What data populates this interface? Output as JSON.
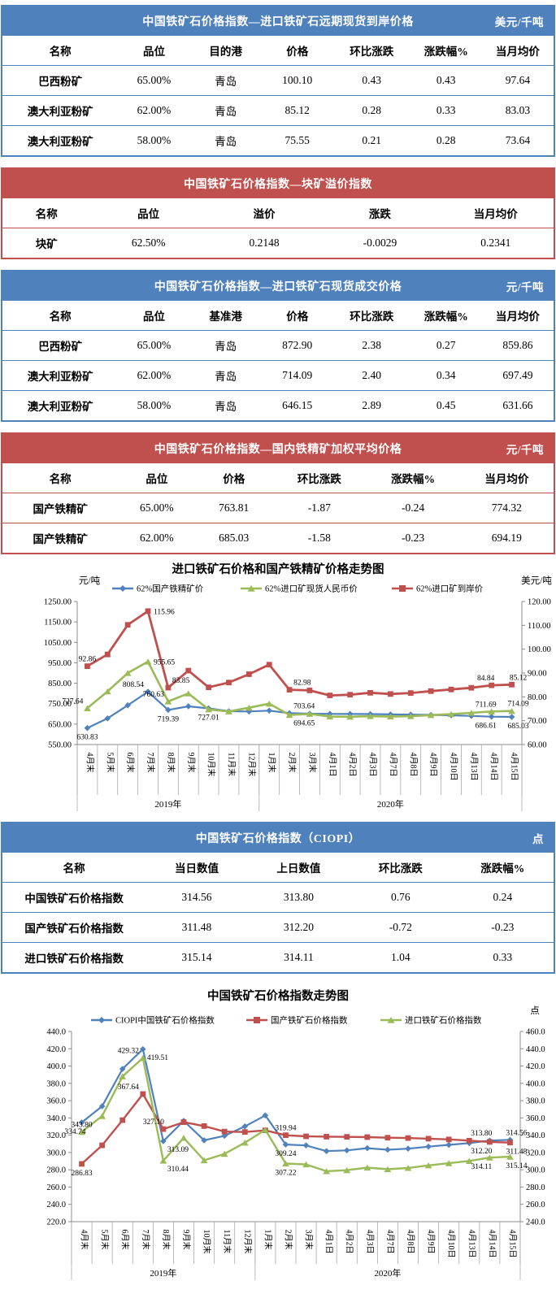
{
  "page": {
    "background": "#ffffff"
  },
  "colors": {
    "blue_accent": "#4F81BD",
    "red_accent": "#C0504D",
    "series_blue": "#4F81BD",
    "series_red": "#C0504D",
    "series_green": "#9BBB59",
    "axis_gray": "#8c8c8c"
  },
  "tables": [
    {
      "id": "import-forward",
      "accent": "blue",
      "title": "中国铁矿石价格指数—进口铁矿石远期现货到岸价格",
      "unit": "美元/千吨",
      "columns": [
        "名称",
        "品位",
        "目的港",
        "价格",
        "环比涨跌",
        "涨跌幅%",
        "当月均价"
      ],
      "rows": [
        [
          "巴西粉矿",
          "65.00%",
          "青岛",
          "100.10",
          "0.43",
          "0.43",
          "97.64"
        ],
        [
          "澳大利亚粉矿",
          "62.00%",
          "青岛",
          "85.12",
          "0.28",
          "0.33",
          "83.03"
        ],
        [
          "澳大利亚粉矿",
          "58.00%",
          "青岛",
          "75.55",
          "0.21",
          "0.28",
          "73.64"
        ]
      ]
    },
    {
      "id": "lump-premium",
      "accent": "red",
      "title": "中国铁矿石价格指数—块矿溢价指数",
      "unit": null,
      "columns": [
        "名称",
        "品位",
        "溢价",
        "涨跌",
        "当月均价"
      ],
      "rows": [
        [
          "块矿",
          "62.50%",
          "0.2148",
          "-0.0029",
          "0.2341"
        ]
      ]
    },
    {
      "id": "import-spot",
      "accent": "blue",
      "title": "中国铁矿石价格指数—进口铁矿石现货成交价格",
      "unit": "元/千吨",
      "columns": [
        "名称",
        "品位",
        "基准港",
        "价格",
        "环比涨跌",
        "涨跌幅%",
        "当月均价"
      ],
      "rows": [
        [
          "巴西粉矿",
          "65.00%",
          "青岛",
          "872.90",
          "2.38",
          "0.27",
          "859.86"
        ],
        [
          "澳大利亚粉矿",
          "62.00%",
          "青岛",
          "714.09",
          "2.40",
          "0.34",
          "697.49"
        ],
        [
          "澳大利亚粉矿",
          "58.00%",
          "青岛",
          "646.15",
          "2.89",
          "0.45",
          "631.66"
        ]
      ]
    },
    {
      "id": "domestic-concentrate",
      "accent": "red",
      "title": "中国铁矿石价格指数—国内铁精矿加权平均价格",
      "unit": "元/千吨",
      "columns": [
        "名称",
        "品位",
        "价格",
        "环比涨跌",
        "涨跌幅%",
        "当月均价"
      ],
      "rows": [
        [
          "国产铁精矿",
          "65.00%",
          "763.81",
          "-1.87",
          "-0.24",
          "774.32"
        ],
        [
          "国产铁精矿",
          "62.00%",
          "685.03",
          "-1.58",
          "-0.23",
          "694.19"
        ]
      ]
    },
    {
      "id": "ciopi",
      "accent": "blue",
      "title": "中国铁矿石价格指数（CIOPI）",
      "unit": "点",
      "columns": [
        "名称",
        "当日数值",
        "上日数值",
        "环比涨跌",
        "涨跌幅%"
      ],
      "rows": [
        [
          "中国铁矿石价格指数",
          "314.56",
          "313.80",
          "0.76",
          "0.24"
        ],
        [
          "国产铁矿石价格指数",
          "311.48",
          "312.20",
          "-0.72",
          "-0.23"
        ],
        [
          "进口铁矿石价格指数",
          "315.14",
          "314.11",
          "1.04",
          "0.33"
        ]
      ]
    }
  ],
  "chart_data": [
    {
      "type": "line",
      "title": "进口铁矿石价格和国产铁精矿价格走势图",
      "unit_left": "元/吨",
      "unit_right": "美元/吨",
      "y_left": {
        "min": 550,
        "max": 1250,
        "step": 100,
        "decimals": 2
      },
      "y_right": {
        "min": 60,
        "max": 120,
        "step": 10,
        "decimals": 2
      },
      "categories": [
        "4月末",
        "5月末",
        "6月末",
        "7月末",
        "8月末",
        "9月末",
        "10月末",
        "11月末",
        "12月末",
        "1月末",
        "2月末",
        "3月末",
        "4月1日",
        "4月2日",
        "4月3日",
        "4月7日",
        "4月8日",
        "4月9日",
        "4月10日",
        "4月13日",
        "4月14日",
        "4月15日"
      ],
      "year_groups": [
        {
          "label": "2019年",
          "count": 9
        },
        {
          "label": "2020年",
          "count": 13
        }
      ],
      "legend_position": "top",
      "grid": false,
      "series": [
        {
          "name": "62%国产铁精矿价",
          "color": "#4F81BD",
          "marker": "diamond",
          "axis": "left",
          "lw": 2.2,
          "values": [
            630.83,
            678,
            742,
            808.54,
            719.39,
            737,
            727.01,
            713,
            712,
            716,
            703.64,
            701,
            700,
            699.5,
            699,
            697.5,
            696.5,
            695,
            693,
            690,
            686.61,
            685.03
          ]
        },
        {
          "name": "62%进口矿现货人民币价",
          "color": "#9BBB59",
          "marker": "triangle",
          "axis": "left",
          "lw": 2.6,
          "values": [
            727.64,
            810,
            900,
            955.65,
            760.63,
            800,
            722,
            712,
            730,
            750,
            694.65,
            700,
            687,
            686,
            689,
            687,
            689,
            694,
            699,
            705,
            711.69,
            714.09
          ]
        },
        {
          "name": "62%进口矿到岸价",
          "color": "#C0504D",
          "marker": "square",
          "axis": "right",
          "lw": 2.8,
          "values": [
            92.86,
            97.8,
            110.2,
            115.96,
            83.85,
            91.0,
            84.0,
            86.0,
            89.5,
            93.5,
            82.98,
            82.7,
            80.6,
            80.9,
            81.7,
            81.2,
            81.6,
            82.4,
            83.1,
            83.8,
            84.84,
            85.12
          ]
        }
      ],
      "point_labels": [
        {
          "s": 0,
          "i": 0,
          "text": "630.83",
          "pos": "below"
        },
        {
          "s": 0,
          "i": 3,
          "text": "808.54",
          "pos": "above-left"
        },
        {
          "s": 0,
          "i": 4,
          "text": "719.39",
          "pos": "below"
        },
        {
          "s": 0,
          "i": 6,
          "text": "727.01",
          "pos": "below"
        },
        {
          "s": 0,
          "i": 10,
          "text": "703.64",
          "pos": "above-right"
        },
        {
          "s": 0,
          "i": 20,
          "text": "686.61",
          "pos": "below",
          "dx": -7
        },
        {
          "s": 0,
          "i": 21,
          "text": "685.03",
          "pos": "below",
          "dx": 8
        },
        {
          "s": 1,
          "i": 0,
          "text": "727.64",
          "pos": "above-left"
        },
        {
          "s": 1,
          "i": 3,
          "text": "955.65",
          "pos": "right"
        },
        {
          "s": 1,
          "i": 4,
          "text": "760.63",
          "pos": "above-left"
        },
        {
          "s": 1,
          "i": 10,
          "text": "694.65",
          "pos": "below-right"
        },
        {
          "s": 1,
          "i": 20,
          "text": "711.69",
          "pos": "above",
          "dx": -7
        },
        {
          "s": 1,
          "i": 21,
          "text": "714.09",
          "pos": "above",
          "dx": 8
        },
        {
          "s": 2,
          "i": 0,
          "text": "92.86",
          "pos": "above"
        },
        {
          "s": 2,
          "i": 3,
          "text": "115.96",
          "pos": "right"
        },
        {
          "s": 2,
          "i": 4,
          "text": "83.85",
          "pos": "above-right"
        },
        {
          "s": 2,
          "i": 10,
          "text": "82.98",
          "pos": "above-right"
        },
        {
          "s": 2,
          "i": 20,
          "text": "84.84",
          "pos": "above",
          "dx": -7
        },
        {
          "s": 2,
          "i": 21,
          "text": "85.12",
          "pos": "above",
          "dx": 8
        }
      ]
    },
    {
      "type": "line",
      "title": "中国铁矿石价格指数走势图",
      "unit_left": null,
      "unit_right": "点",
      "y_left": {
        "min": 220,
        "max": 440,
        "step": 20,
        "decimals": 1
      },
      "y_right": {
        "min": 240,
        "max": 460,
        "step": 20,
        "decimals": 1
      },
      "categories": [
        "4月末",
        "5月末",
        "6月末",
        "7月末",
        "8月末",
        "9月末",
        "10月末",
        "11月末",
        "12月末",
        "1月末",
        "2月末",
        "3月末",
        "4月1日",
        "4月2日",
        "4月3日",
        "4月7日",
        "4月8日",
        "4月9日",
        "4月10日",
        "4月13日",
        "4月14日",
        "4月15日"
      ],
      "year_groups": [
        {
          "label": "2019年",
          "count": 9
        },
        {
          "label": "2020年",
          "count": 13
        }
      ],
      "legend_position": "top",
      "grid": false,
      "series": [
        {
          "name": "CIOPI中国铁矿石价格指数",
          "color": "#4F81BD",
          "marker": "diamond",
          "axis": "left",
          "lw": 2.2,
          "values": [
            334.74,
            353.5,
            396.7,
            419.51,
            313.09,
            336.6,
            314.1,
            319.3,
            330.2,
            342.9,
            309.24,
            308.2,
            301.6,
            302.5,
            305.0,
            303.2,
            304.4,
            306.8,
            308.8,
            310.8,
            313.8,
            314.56
          ]
        },
        {
          "name": "国产铁矿石价格指数",
          "color": "#C0504D",
          "marker": "square",
          "axis": "left",
          "lw": 2.4,
          "values": [
            286.83,
            308.3,
            337.4,
            367.64,
            327.1,
            335.1,
            330.6,
            324.2,
            323.7,
            325.6,
            319.94,
            318.7,
            318.3,
            318.1,
            317.8,
            317.1,
            316.7,
            316.0,
            315.1,
            313.7,
            312.2,
            311.48
          ]
        },
        {
          "name": "进口铁矿石价格指数",
          "color": "#9BBB59",
          "marker": "triangle",
          "axis": "right",
          "lw": 2.4,
          "values": [
            343.8,
            362.1,
            408.0,
            429.32,
            310.44,
            336.9,
            311.0,
            318.4,
            331.4,
            346.2,
            307.22,
            306.2,
            298.4,
            299.5,
            302.5,
            300.6,
            302.1,
            305.1,
            307.6,
            310.2,
            314.11,
            315.14
          ]
        }
      ],
      "point_labels": [
        {
          "s": 0,
          "i": 0,
          "text": "334.74",
          "pos": "below-left",
          "dx": 10
        },
        {
          "s": 0,
          "i": 3,
          "text": "419.51",
          "pos": "below-right"
        },
        {
          "s": 0,
          "i": 4,
          "text": "313.09",
          "pos": "below-right"
        },
        {
          "s": 0,
          "i": 10,
          "text": "309.24",
          "pos": "below"
        },
        {
          "s": 0,
          "i": 20,
          "text": "313.80",
          "pos": "above",
          "dx": -10
        },
        {
          "s": 0,
          "i": 21,
          "text": "314.56",
          "pos": "above",
          "dx": 8
        },
        {
          "s": 1,
          "i": 0,
          "text": "286.83",
          "pos": "below"
        },
        {
          "s": 1,
          "i": 3,
          "text": "367.64",
          "pos": "above-left"
        },
        {
          "s": 1,
          "i": 4,
          "text": "327.10",
          "pos": "above-left",
          "dx": 6
        },
        {
          "s": 1,
          "i": 10,
          "text": "319.94",
          "pos": "above"
        },
        {
          "s": 1,
          "i": 20,
          "text": "312.20",
          "pos": "below",
          "dx": -10
        },
        {
          "s": 1,
          "i": 21,
          "text": "311.48",
          "pos": "below",
          "dx": 8
        },
        {
          "s": 2,
          "i": 0,
          "text": "343.80",
          "pos": "above"
        },
        {
          "s": 2,
          "i": 3,
          "text": "429.32",
          "pos": "above-left"
        },
        {
          "s": 2,
          "i": 4,
          "text": "310.44",
          "pos": "below-right"
        },
        {
          "s": 2,
          "i": 10,
          "text": "307.22",
          "pos": "below"
        },
        {
          "s": 2,
          "i": 20,
          "text": "314.11",
          "pos": "below",
          "dx": -10
        },
        {
          "s": 2,
          "i": 21,
          "text": "315.14",
          "pos": "below",
          "dx": 8
        }
      ]
    }
  ]
}
